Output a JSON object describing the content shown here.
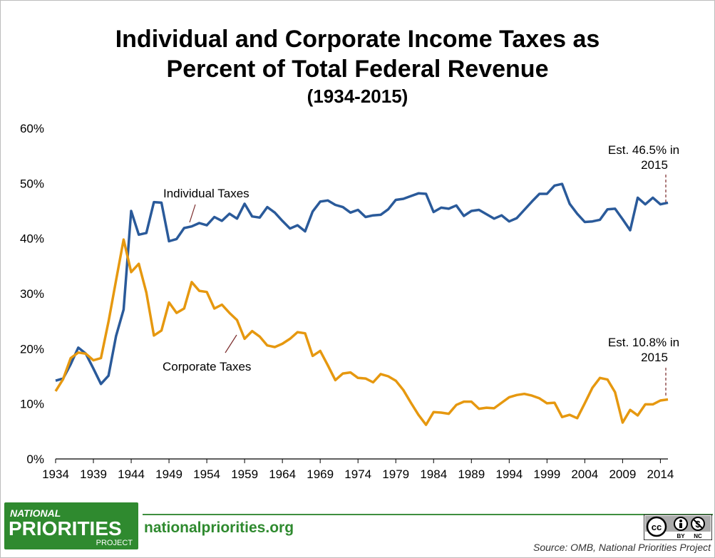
{
  "chart_data": {
    "type": "line",
    "title": "Individual and Corporate Income Taxes as",
    "title_line2": "Percent of Total Federal Revenue",
    "subtitle": "(1934-2015)",
    "xlabel": "",
    "ylabel": "",
    "xlim": [
      1934,
      2015
    ],
    "ylim": [
      0,
      60
    ],
    "x_ticks": [
      "1934",
      "1939",
      "1944",
      "1949",
      "1954",
      "1959",
      "1964",
      "1969",
      "1974",
      "1979",
      "1984",
      "1989",
      "1994",
      "1999",
      "2004",
      "2009",
      "2014"
    ],
    "y_ticks": [
      "0%",
      "10%",
      "20%",
      "30%",
      "40%",
      "50%",
      "60%"
    ],
    "x": [
      1934,
      1935,
      1936,
      1937,
      1938,
      1939,
      1940,
      1941,
      1942,
      1943,
      1944,
      1945,
      1946,
      1947,
      1948,
      1949,
      1950,
      1951,
      1952,
      1953,
      1954,
      1955,
      1956,
      1957,
      1958,
      1959,
      1960,
      1961,
      1962,
      1963,
      1964,
      1965,
      1966,
      1967,
      1968,
      1969,
      1970,
      1971,
      1972,
      1973,
      1974,
      1975,
      1976,
      1977,
      1978,
      1979,
      1980,
      1981,
      1982,
      1983,
      1984,
      1985,
      1986,
      1987,
      1988,
      1989,
      1990,
      1991,
      1992,
      1993,
      1994,
      1995,
      1996,
      1997,
      1998,
      1999,
      2000,
      2001,
      2002,
      2003,
      2004,
      2005,
      2006,
      2007,
      2008,
      2009,
      2010,
      2011,
      2012,
      2013,
      2014,
      2015
    ],
    "series": [
      {
        "name": "Individual Taxes",
        "color": "#2a5a9a",
        "values": [
          14.2,
          14.6,
          17.2,
          20.2,
          19.1,
          16.4,
          13.6,
          15.1,
          22.3,
          27.1,
          45.0,
          40.7,
          41.0,
          46.6,
          46.5,
          39.5,
          39.9,
          41.9,
          42.2,
          42.8,
          42.4,
          43.9,
          43.2,
          44.5,
          43.6,
          46.3,
          44.0,
          43.8,
          45.7,
          44.7,
          43.2,
          41.8,
          42.4,
          41.3,
          44.9,
          46.7,
          46.9,
          46.1,
          45.7,
          44.7,
          45.2,
          43.9,
          44.2,
          44.3,
          45.3,
          47.0,
          47.2,
          47.7,
          48.2,
          48.1,
          44.8,
          45.6,
          45.4,
          46.0,
          44.1,
          45.0,
          45.2,
          44.4,
          43.6,
          44.2,
          43.1,
          43.7,
          45.2,
          46.7,
          48.1,
          48.1,
          49.6,
          49.9,
          46.3,
          44.5,
          43.0,
          43.1,
          43.4,
          45.3,
          45.4,
          43.5,
          41.5,
          47.4,
          46.2,
          47.4,
          46.2,
          46.5
        ]
      },
      {
        "name": "Corporate Taxes",
        "color": "#e6980f",
        "values": [
          12.3,
          14.5,
          18.3,
          19.3,
          19.1,
          17.9,
          18.3,
          24.9,
          32.4,
          39.8,
          33.9,
          35.4,
          30.2,
          22.4,
          23.3,
          28.4,
          26.5,
          27.3,
          32.1,
          30.5,
          30.3,
          27.3,
          28.0,
          26.5,
          25.2,
          21.8,
          23.2,
          22.2,
          20.6,
          20.3,
          20.9,
          21.8,
          23.0,
          22.8,
          18.7,
          19.6,
          17.0,
          14.3,
          15.5,
          15.7,
          14.7,
          14.6,
          13.9,
          15.4,
          15.0,
          14.2,
          12.5,
          10.2,
          8.0,
          6.2,
          8.5,
          8.4,
          8.2,
          9.8,
          10.4,
          10.4,
          9.1,
          9.3,
          9.2,
          10.2,
          11.2,
          11.6,
          11.8,
          11.5,
          11.0,
          10.1,
          10.2,
          7.6,
          8.0,
          7.4,
          10.1,
          12.9,
          14.7,
          14.4,
          12.1,
          6.6,
          8.9,
          7.9,
          9.9,
          9.9,
          10.6,
          10.8
        ]
      }
    ],
    "annotations": {
      "individual_label": "Individual Taxes",
      "corporate_label": "Corporate Taxes",
      "est_individual_line1": "Est. 46.5% in",
      "est_individual_line2": "2015",
      "est_corporate_line1": "Est. 10.8% in",
      "est_corporate_line2": "2015"
    }
  },
  "footer": {
    "logo_line1": "NATIONAL",
    "logo_line2": "PRIORITIES",
    "logo_line3": "PROJECT",
    "site": "nationalpriorities.org",
    "license_cc": "cc",
    "license_by": "BY",
    "license_nc": "NC",
    "source": "Source: OMB, National Priorities Project"
  }
}
